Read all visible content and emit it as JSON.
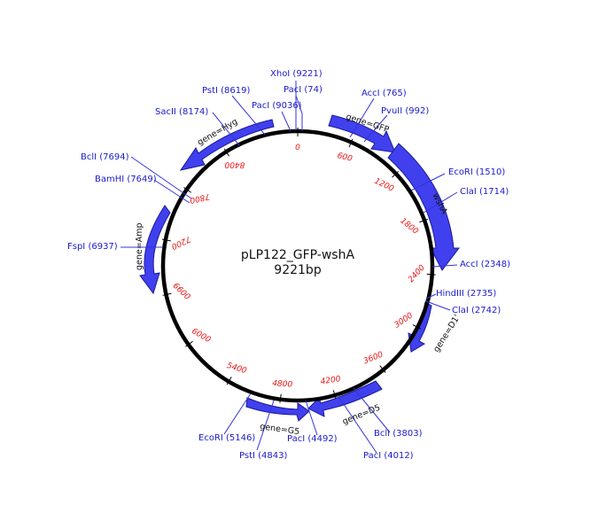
{
  "plasmid": {
    "name": "pLP122_GFP-wshA",
    "size_label": "9221bp",
    "length_bp": 9221
  },
  "colors": {
    "backbone": "#000000",
    "gene_fill": "#4040ee",
    "gene_stroke": "#1a1a99",
    "site_text": "#1a1acc",
    "site_line": "#3333dd",
    "tick_text": "#ee1111"
  },
  "ticks": [
    "0",
    "600",
    "1200",
    "1800",
    "2400",
    "3000",
    "3600",
    "4200",
    "4800",
    "5400",
    "6000",
    "6600",
    "7200",
    "7800",
    "8400"
  ],
  "sites": [
    {
      "label": "XhoI (9221)"
    },
    {
      "label": "PacI (74)"
    },
    {
      "label": "PacI (9036)"
    },
    {
      "label": "PstI (8619)"
    },
    {
      "label": "SacII (8174)"
    },
    {
      "label": "AccI (765)"
    },
    {
      "label": "PvuII (992)"
    },
    {
      "label": "EcoRI (1510)"
    },
    {
      "label": "ClaI (1714)"
    },
    {
      "label": "AccI (2348)"
    },
    {
      "label": "HindIII (2735)"
    },
    {
      "label": "ClaI (2742)"
    },
    {
      "label": "BclI (7694)"
    },
    {
      "label": "BamHI (7649)"
    },
    {
      "label": "FspI (6937)"
    },
    {
      "label": "BclI (3803)"
    },
    {
      "label": "PacI (4012)"
    },
    {
      "label": "PacI (4492)"
    },
    {
      "label": "PstI (4843)"
    },
    {
      "label": "EcoRI (5146)"
    }
  ],
  "genes": [
    {
      "label": "gene=GFP"
    },
    {
      "label": "wshA"
    },
    {
      "label": "gene=D1'"
    },
    {
      "label": "gene=D5"
    },
    {
      "label": "gene=G5"
    },
    {
      "label": "gene=Amp"
    },
    {
      "label": "gene=Hyg"
    }
  ]
}
